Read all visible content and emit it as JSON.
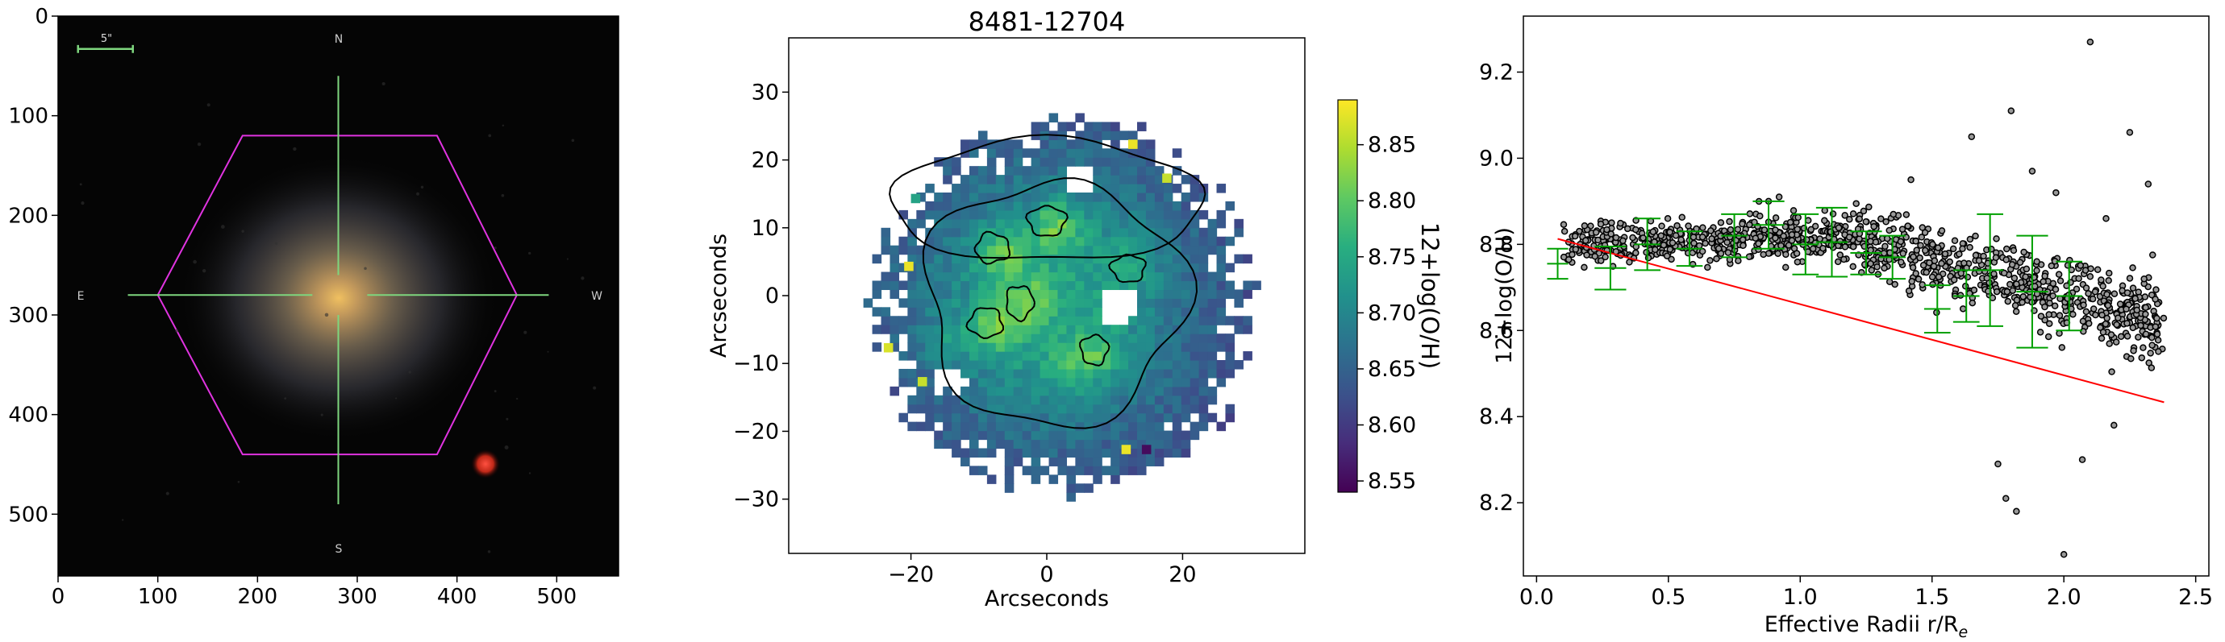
{
  "chart_data": [
    {
      "type": "image",
      "panel": "galaxy-image",
      "xlim": [
        0,
        562
      ],
      "ylim": [
        0,
        562
      ],
      "xticks": [
        0,
        100,
        200,
        300,
        400,
        500
      ],
      "yticks": [
        0,
        100,
        200,
        300,
        400,
        500
      ],
      "overlay_text": {
        "scale": "5\"",
        "north": "N",
        "south": "S",
        "east": "E",
        "west": "W"
      },
      "colors": {
        "hexagon": "#e033e0",
        "crosshair": "#7ed67e",
        "scalebar": "#7ed67e"
      }
    },
    {
      "type": "heatmap",
      "panel": "metallicity-map",
      "title": "8481-12704",
      "xlabel": "Arcseconds",
      "ylabel": "Arcseconds",
      "xlim": [
        -38,
        38
      ],
      "ylim": [
        38,
        -38
      ],
      "xticks": [
        -20,
        0,
        20
      ],
      "yticks": [
        -30,
        -20,
        -10,
        0,
        10,
        20,
        30
      ],
      "colorbar": {
        "label": "12+log(O/H)",
        "range": [
          8.54,
          8.89
        ],
        "ticks": [
          "8.55",
          "8.60",
          "8.65",
          "8.70",
          "8.75",
          "8.80",
          "8.85"
        ],
        "colormap": "viridis"
      },
      "contour_levels": [
        8.65,
        8.75,
        8.85
      ]
    },
    {
      "type": "scatter",
      "panel": "radial-gradient",
      "xlabel": "Effective Radii r/R",
      "xlabel_sub": "e",
      "ylabel": "12+log(O/H)",
      "xlim": [
        -0.05,
        2.55
      ],
      "ylim": [
        8.03,
        9.33
      ],
      "xticks": [
        "0.0",
        "0.5",
        "1.0",
        "1.5",
        "2.0",
        "2.5"
      ],
      "yticks": [
        "8.2",
        "8.4",
        "8.6",
        "8.8",
        "9.0",
        "9.2"
      ],
      "fit": {
        "slope": -0.165,
        "intercept": 8.826,
        "x_range": [
          0.08,
          2.38
        ],
        "color": "#ff0000"
      },
      "binned": {
        "color": "#00a000",
        "x": [
          0.08,
          0.28,
          0.42,
          0.58,
          0.75,
          0.88,
          1.02,
          1.12,
          1.25,
          1.35,
          1.52,
          1.63,
          1.72,
          1.88,
          2.02
        ],
        "y": [
          8.755,
          8.745,
          8.8,
          8.79,
          8.82,
          8.845,
          8.8,
          8.805,
          8.78,
          8.77,
          8.65,
          8.68,
          8.74,
          8.69,
          8.68
        ],
        "yerr": [
          0.035,
          0.05,
          0.06,
          0.04,
          0.05,
          0.055,
          0.07,
          0.08,
          0.05,
          0.05,
          0.055,
          0.06,
          0.13,
          0.13,
          0.08
        ],
        "xerr": [
          0.04,
          0.06,
          0.05,
          0.05,
          0.05,
          0.06,
          0.05,
          0.06,
          0.06,
          0.05,
          0.05,
          0.05,
          0.05,
          0.06,
          0.05
        ]
      },
      "points": {
        "color": "#000000",
        "outliers": [
          [
            2.1,
            9.27
          ],
          [
            2.0,
            8.08
          ],
          [
            1.8,
            9.11
          ],
          [
            1.65,
            9.05
          ],
          [
            2.25,
            9.06
          ],
          [
            2.32,
            8.94
          ],
          [
            1.42,
            8.95
          ],
          [
            1.78,
            8.21
          ],
          [
            1.82,
            8.18
          ],
          [
            2.07,
            8.3
          ],
          [
            2.16,
            8.86
          ],
          [
            1.88,
            8.97
          ],
          [
            1.97,
            8.92
          ],
          [
            1.75,
            8.29
          ],
          [
            2.19,
            8.38
          ],
          [
            0.88,
            8.9
          ],
          [
            0.92,
            8.91
          ]
        ]
      }
    }
  ]
}
